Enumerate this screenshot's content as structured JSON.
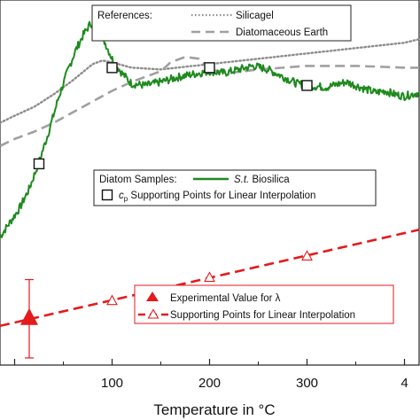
{
  "chart_data": {
    "type": "line",
    "xlabel": "Temperature in °C",
    "x_ticks": [
      "100",
      "200",
      "300",
      "4"
    ],
    "references_legend": {
      "title": "References:",
      "items": [
        "Silicagel",
        "Diatomaceous Earth"
      ]
    },
    "samples_legend": {
      "title": "Diatom Samples:",
      "series_label_italic": "S.t.",
      "series_label_rest": " Biosilica",
      "points_label_symbol": "c",
      "points_label_sub": "p",
      "points_label_rest": " Supporting Points for Linear Interpolation"
    },
    "lambda_legend": {
      "experimental": "Experimental Value for λ",
      "points": "Supporting Points for Linear Interpolation"
    },
    "colors": {
      "biosilica": "#1e8a1e",
      "silicagel": "#8c8c8c",
      "diatomaceous_earth": "#a0a0a0",
      "lambda": "#e41a1c"
    },
    "series": [
      {
        "name": "S.t. Biosilica",
        "style": "solid-noisy",
        "x": [
          -15,
          -5,
          5,
          15,
          25,
          35,
          45,
          55,
          62,
          70,
          78,
          85,
          92,
          100,
          110,
          120,
          135,
          150,
          170,
          190,
          200,
          215,
          230,
          245,
          260,
          275,
          290,
          300,
          320,
          340,
          355,
          370,
          380,
          390,
          400,
          415
        ],
        "y": [
          0.72,
          0.8,
          0.88,
          0.99,
          1.14,
          1.31,
          1.5,
          1.66,
          1.76,
          1.85,
          1.92,
          1.9,
          1.82,
          1.72,
          1.64,
          1.58,
          1.57,
          1.59,
          1.62,
          1.64,
          1.65,
          1.64,
          1.66,
          1.68,
          1.66,
          1.62,
          1.58,
          1.57,
          1.56,
          1.59,
          1.56,
          1.53,
          1.54,
          1.52,
          1.51,
          1.53
        ]
      },
      {
        "name": "Silicagel",
        "style": "dotted",
        "x": [
          -15,
          0,
          20,
          40,
          60,
          80,
          90,
          100,
          120,
          150,
          200,
          250,
          300,
          350,
          400,
          415
        ],
        "y": [
          1.36,
          1.4,
          1.45,
          1.52,
          1.6,
          1.69,
          1.71,
          1.7,
          1.67,
          1.66,
          1.69,
          1.72,
          1.75,
          1.78,
          1.81,
          1.83
        ]
      },
      {
        "name": "Diatomaceous Earth",
        "style": "dashed",
        "x": [
          -15,
          0,
          20,
          40,
          60,
          80,
          100,
          120,
          150,
          160,
          175,
          190,
          200,
          220,
          250,
          300,
          350,
          400,
          415
        ],
        "y": [
          1.23,
          1.27,
          1.31,
          1.36,
          1.42,
          1.48,
          1.54,
          1.59,
          1.65,
          1.7,
          1.73,
          1.72,
          1.66,
          1.64,
          1.66,
          1.68,
          1.68,
          1.67,
          1.67
        ]
      }
    ],
    "cp_points": {
      "name": "cp Supporting Points",
      "x": [
        25,
        100,
        200,
        300
      ],
      "y": [
        1.13,
        1.67,
        1.67,
        1.57
      ]
    },
    "lambda_line": {
      "name": "Supporting Points for Linear Interpolation",
      "x": [
        -15,
        415
      ],
      "y": [
        0.22,
        0.76
      ],
      "points_x": [
        100,
        200,
        300
      ],
      "points_y": [
        0.36,
        0.49,
        0.61
      ]
    },
    "lambda_experimental": {
      "x": 15,
      "y": 0.26,
      "err_low": 0.04,
      "err_high": 0.48
    },
    "xlim": [
      -15,
      415
    ],
    "ylim": [
      0,
      2.05
    ]
  }
}
